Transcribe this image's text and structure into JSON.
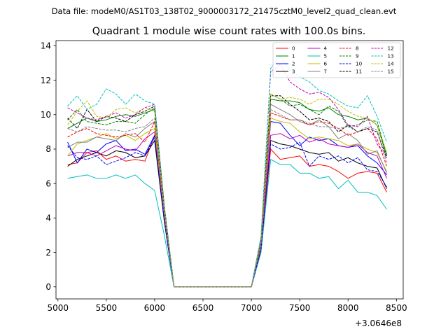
{
  "figure": {
    "suptitle": "Data file: modeM0/AS1T03_138T02_9000003172_21475cztM0_level2_quad_clean.evt",
    "title": "Quadrant 1 module wise count rates with 100.0s bins.",
    "x_offset_label": "+3.0646e8"
  },
  "chart_data": {
    "type": "line",
    "title": "Quadrant 1 module wise count rates with 100.0s bins.",
    "xlabel": "",
    "ylabel": "",
    "x_offset": "+3.0646e8",
    "xlim": [
      4980,
      8570
    ],
    "ylim": [
      -0.7,
      14.3
    ],
    "xticks": [
      5000,
      5500,
      6000,
      6500,
      7000,
      7500,
      8000,
      8500
    ],
    "yticks": [
      0,
      2,
      4,
      6,
      8,
      10,
      12,
      14
    ],
    "grid": false,
    "legend": {
      "placement": "top-right",
      "ncol": 4
    },
    "x": [
      5100,
      5200,
      5300,
      5400,
      5500,
      5600,
      5700,
      5800,
      5900,
      6000,
      6100,
      6200,
      6300,
      6400,
      6500,
      6600,
      6700,
      6800,
      6900,
      7000,
      7100,
      7200,
      7300,
      7400,
      7500,
      7600,
      7700,
      7800,
      7900,
      8000,
      8100,
      8200,
      8300,
      8400
    ],
    "series": [
      {
        "name": "0",
        "color": "#ff0000",
        "dash": "solid",
        "values": [
          7.1,
          7.2,
          7.8,
          7.9,
          7.4,
          7.6,
          7.3,
          7.4,
          7.3,
          8.8,
          3.9,
          0,
          0,
          0,
          0,
          0,
          0,
          0,
          0,
          0,
          2.1,
          8.0,
          7.4,
          7.5,
          7.6,
          7.0,
          7.1,
          7.0,
          6.7,
          6.3,
          6.6,
          6.7,
          6.6,
          5.5
        ]
      },
      {
        "name": "1",
        "color": "#008000",
        "dash": "solid",
        "values": [
          9.2,
          9.5,
          9.8,
          9.6,
          9.7,
          9.9,
          10.0,
          9.9,
          10.1,
          10.3,
          4.5,
          0,
          0,
          0,
          0,
          0,
          0,
          0,
          0,
          0,
          2.6,
          10.9,
          10.8,
          10.8,
          10.7,
          10.3,
          10.2,
          10.4,
          10.0,
          9.9,
          9.7,
          9.8,
          9.4,
          7.6
        ]
      },
      {
        "name": "2",
        "color": "#0000ff",
        "dash": "solid",
        "values": [
          8.4,
          7.2,
          8.0,
          7.8,
          8.3,
          8.5,
          7.9,
          8.0,
          7.7,
          8.8,
          3.9,
          0,
          0,
          0,
          0,
          0,
          0,
          0,
          0,
          0,
          2.3,
          9.6,
          9.5,
          8.8,
          8.2,
          8.7,
          8.5,
          8.6,
          8.2,
          8.1,
          8.2,
          7.6,
          7.2,
          6.5
        ]
      },
      {
        "name": "3",
        "color": "#000000",
        "dash": "solid",
        "values": [
          7.0,
          7.4,
          7.6,
          7.8,
          7.6,
          7.9,
          7.8,
          7.5,
          7.6,
          8.5,
          3.8,
          0,
          0,
          0,
          0,
          0,
          0,
          0,
          0,
          0,
          2.2,
          8.5,
          8.3,
          8.2,
          8.0,
          7.8,
          7.7,
          7.8,
          7.3,
          7.5,
          7.2,
          7.0,
          6.9,
          5.7
        ]
      },
      {
        "name": "4",
        "color": "#bf00bf",
        "dash": "solid",
        "values": [
          7.6,
          7.8,
          7.8,
          7.6,
          7.9,
          8.2,
          8.0,
          7.9,
          8.6,
          9.0,
          4.0,
          0,
          0,
          0,
          0,
          0,
          0,
          0,
          0,
          0,
          2.3,
          8.8,
          8.9,
          8.6,
          8.8,
          8.4,
          8.6,
          8.3,
          8.2,
          8.1,
          8.3,
          7.8,
          7.6,
          6.3
        ]
      },
      {
        "name": "5",
        "color": "#00bfbf",
        "dash": "solid",
        "values": [
          6.3,
          6.4,
          6.5,
          6.3,
          6.3,
          6.5,
          6.3,
          6.5,
          6.0,
          5.6,
          3.0,
          0,
          0,
          0,
          0,
          0,
          0,
          0,
          0,
          0,
          2.0,
          7.4,
          7.1,
          7.1,
          6.6,
          6.6,
          6.3,
          6.4,
          5.7,
          6.2,
          5.5,
          5.5,
          5.3,
          4.5
        ]
      },
      {
        "name": "6",
        "color": "#bfbf00",
        "dash": "solid",
        "values": [
          7.6,
          8.3,
          8.5,
          8.7,
          8.9,
          8.6,
          8.8,
          8.5,
          8.9,
          9.2,
          4.1,
          0,
          0,
          0,
          0,
          0,
          0,
          0,
          0,
          0,
          2.4,
          9.8,
          9.6,
          9.5,
          9.0,
          8.6,
          8.7,
          8.6,
          8.5,
          8.2,
          8.3,
          8.0,
          7.8,
          6.7
        ]
      },
      {
        "name": "7",
        "color": "#808080",
        "dash": "solid",
        "values": [
          8.1,
          8.4,
          8.4,
          8.7,
          8.6,
          8.5,
          8.9,
          8.7,
          9.2,
          9.6,
          4.2,
          0,
          0,
          0,
          0,
          0,
          0,
          0,
          0,
          0,
          2.5,
          10.6,
          10.3,
          10.0,
          9.6,
          9.4,
          9.7,
          9.3,
          8.6,
          8.9,
          8.5,
          7.7,
          7.9,
          6.6
        ]
      },
      {
        "name": "8",
        "color": "#ff0000",
        "dash": "dashed",
        "values": [
          8.7,
          9.0,
          9.2,
          8.9,
          8.8,
          8.7,
          8.8,
          8.9,
          8.4,
          9.6,
          4.2,
          0,
          0,
          0,
          0,
          0,
          0,
          0,
          0,
          0,
          2.5,
          10.1,
          9.9,
          9.7,
          9.7,
          9.4,
          9.6,
          9.5,
          9.2,
          8.8,
          9.0,
          9.2,
          8.6,
          7.0
        ]
      },
      {
        "name": "9",
        "color": "#008000",
        "dash": "dashed",
        "values": [
          9.7,
          10.3,
          9.6,
          9.5,
          9.4,
          9.6,
          9.6,
          9.5,
          10.0,
          10.4,
          4.6,
          0,
          0,
          0,
          0,
          0,
          0,
          0,
          0,
          0,
          2.7,
          11.2,
          10.9,
          10.5,
          10.6,
          10.3,
          10.0,
          10.5,
          10.2,
          9.3,
          9.4,
          9.7,
          9.6,
          7.7
        ]
      },
      {
        "name": "10",
        "color": "#0000ff",
        "dash": "dashed",
        "values": [
          8.2,
          7.5,
          7.4,
          7.6,
          7.1,
          7.3,
          7.5,
          7.8,
          7.6,
          8.7,
          3.9,
          0,
          0,
          0,
          0,
          0,
          0,
          0,
          0,
          0,
          2.2,
          8.3,
          8.0,
          8.1,
          8.4,
          7.0,
          7.6,
          7.4,
          7.6,
          7.2,
          7.5,
          6.8,
          6.7,
          5.8
        ]
      },
      {
        "name": "11",
        "color": "#000000",
        "dash": "dashed",
        "values": [
          9.8,
          9.2,
          10.3,
          9.6,
          9.9,
          9.8,
          9.6,
          10.0,
          10.2,
          10.5,
          4.7,
          0,
          0,
          0,
          0,
          0,
          0,
          0,
          0,
          0,
          2.8,
          11.1,
          11.1,
          10.6,
          10.2,
          9.7,
          9.8,
          9.6,
          9.0,
          9.4,
          9.0,
          9.2,
          9.0,
          7.5
        ]
      },
      {
        "name": "12",
        "color": "#bf00bf",
        "dash": "dashed",
        "values": [
          10.4,
          10.1,
          9.8,
          9.7,
          9.9,
          10.1,
          9.8,
          10.0,
          10.4,
          10.6,
          4.7,
          0,
          0,
          0,
          0,
          0,
          0,
          0,
          0,
          0,
          2.9,
          12.5,
          12.9,
          11.9,
          11.5,
          11.2,
          11.3,
          11.0,
          10.3,
          9.4,
          9.3,
          9.9,
          8.3,
          7.5
        ]
      },
      {
        "name": "13",
        "color": "#00bfbf",
        "dash": "dashed",
        "values": [
          10.5,
          11.1,
          10.3,
          10.6,
          11.5,
          11.2,
          10.6,
          11.2,
          10.8,
          10.6,
          4.7,
          0,
          0,
          0,
          0,
          0,
          0,
          0,
          0,
          0,
          2.9,
          12.7,
          13.4,
          12.6,
          12.2,
          11.9,
          11.4,
          11.2,
          10.8,
          10.5,
          10.4,
          11.1,
          9.9,
          8.4
        ]
      },
      {
        "name": "14",
        "color": "#bfbf00",
        "dash": "dashed",
        "values": [
          9.4,
          10.2,
          10.8,
          9.9,
          9.8,
          10.3,
          10.4,
          10.1,
          10.4,
          10.2,
          4.5,
          0,
          0,
          0,
          0,
          0,
          0,
          0,
          0,
          0,
          2.7,
          11.2,
          10.9,
          11.0,
          10.9,
          10.6,
          10.9,
          10.9,
          10.6,
          10.2,
          9.9,
          9.8,
          9.4,
          7.8
        ]
      },
      {
        "name": "15",
        "color": "#808080",
        "dash": "dashed",
        "values": [
          9.2,
          9.0,
          9.3,
          9.2,
          9.1,
          9.1,
          9.0,
          9.2,
          9.3,
          9.8,
          4.3,
          0,
          0,
          0,
          0,
          0,
          0,
          0,
          0,
          0,
          2.6,
          10.3,
          10.0,
          9.7,
          9.7,
          9.5,
          9.3,
          9.3,
          9.2,
          9.3,
          9.0,
          9.3,
          9.1,
          7.2
        ]
      }
    ]
  }
}
